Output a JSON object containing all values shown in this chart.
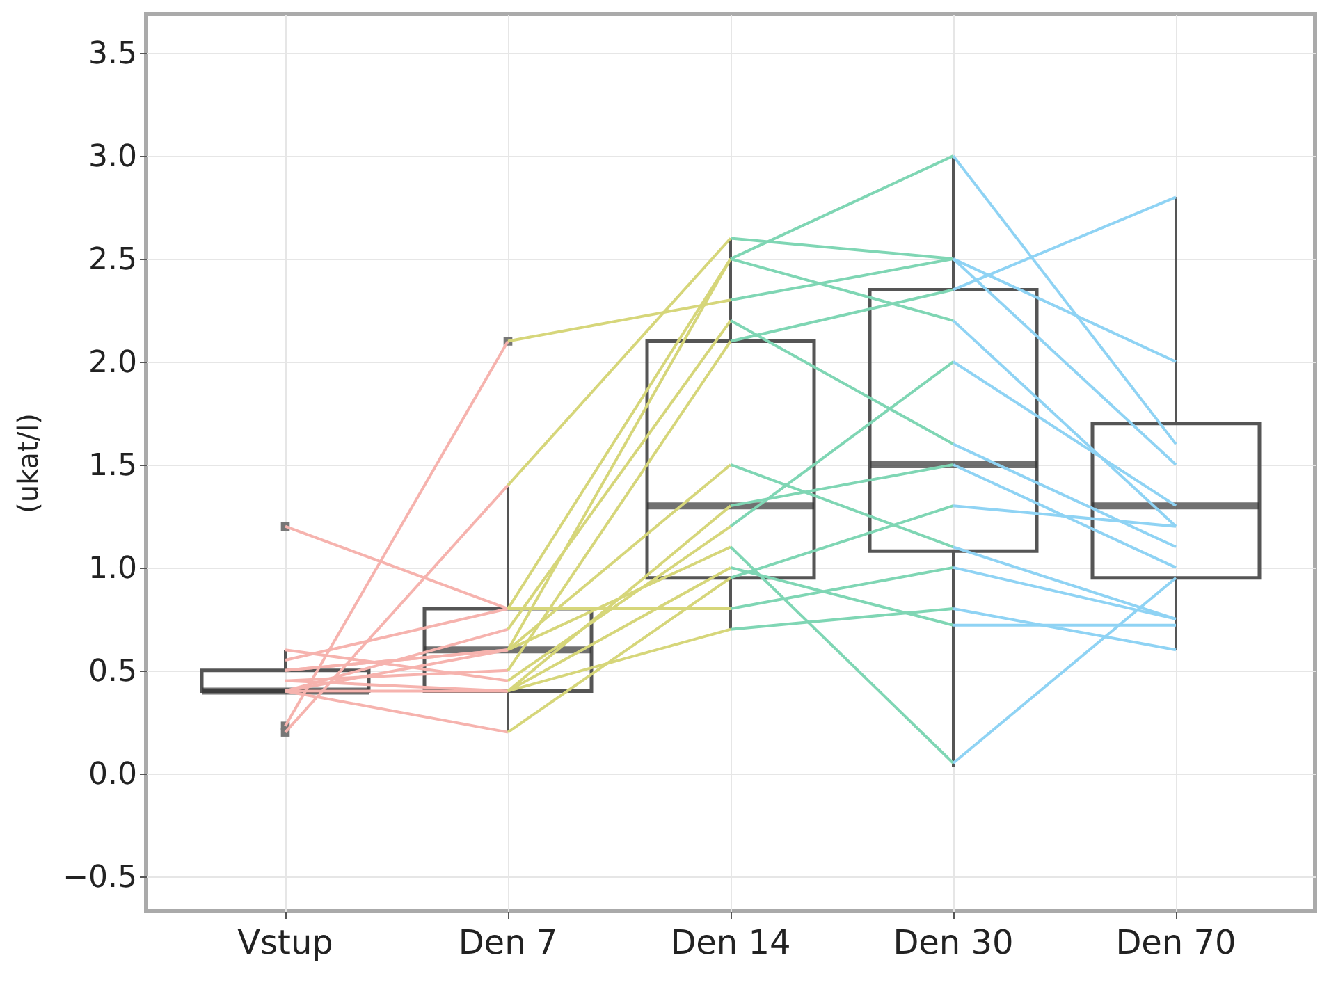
{
  "chart_data": {
    "type": "box",
    "ylabel": "(ukat/l)",
    "categories": [
      "Vstup",
      "Den 7",
      "Den 14",
      "Den 30",
      "Den 70"
    ],
    "ylim": [
      -0.67,
      3.69
    ],
    "yticks": [
      -0.5,
      {
        "value": 0,
        "label": "0.0"
      },
      0.5,
      {
        "value": 1,
        "label": "1.0"
      },
      1.5,
      {
        "value": 2,
        "label": "2.0"
      },
      2.5,
      {
        "value": 3,
        "label": "3.0"
      },
      3.5
    ],
    "grid": true,
    "boxes": [
      {
        "low": 0.4,
        "q1": 0.4,
        "median": 0.4,
        "q3": 0.5,
        "high": 0.6,
        "outliers": [
          1.2,
          0.23,
          0.2
        ]
      },
      {
        "low": 0.2,
        "q1": 0.4,
        "median": 0.6,
        "q3": 0.8,
        "high": 1.4,
        "outliers": [
          2.1
        ]
      },
      {
        "low": 0.7,
        "q1": 0.95,
        "median": 1.3,
        "q3": 2.1,
        "high": 2.6
      },
      {
        "low": 0.03,
        "q1": 1.08,
        "median": 1.5,
        "q3": 2.35,
        "high": 3.0
      },
      {
        "low": 0.6,
        "q1": 0.95,
        "median": 1.3,
        "q3": 1.7,
        "high": 2.8
      }
    ],
    "series": [
      {
        "type": "line",
        "color": "#f6b3ae",
        "x": [
          "Vstup",
          "Den 7"
        ],
        "values": [
          0.23,
          2.1
        ]
      },
      {
        "type": "line",
        "color": "#f6b3ae",
        "x": [
          "Vstup",
          "Den 7"
        ],
        "values": [
          0.2,
          1.4
        ]
      },
      {
        "type": "line",
        "color": "#f6b3ae",
        "x": [
          "Vstup",
          "Den 7"
        ],
        "values": [
          1.2,
          0.8
        ]
      },
      {
        "type": "line",
        "color": "#f6b3ae",
        "x": [
          "Vstup",
          "Den 7"
        ],
        "values": [
          0.4,
          0.6
        ]
      },
      {
        "type": "line",
        "color": "#f6b3ae",
        "x": [
          "Vstup",
          "Den 7"
        ],
        "values": [
          0.4,
          0.7
        ]
      },
      {
        "type": "line",
        "color": "#f6b3ae",
        "x": [
          "Vstup",
          "Den 7"
        ],
        "values": [
          0.45,
          0.5
        ]
      },
      {
        "type": "line",
        "color": "#f6b3ae",
        "x": [
          "Vstup",
          "Den 7"
        ],
        "values": [
          0.5,
          0.6
        ]
      },
      {
        "type": "line",
        "color": "#f6b3ae",
        "x": [
          "Vstup",
          "Den 7"
        ],
        "values": [
          0.4,
          0.4
        ]
      },
      {
        "type": "line",
        "color": "#f6b3ae",
        "x": [
          "Vstup",
          "Den 7"
        ],
        "values": [
          0.6,
          0.45
        ]
      },
      {
        "type": "line",
        "color": "#f6b3ae",
        "x": [
          "Vstup",
          "Den 7"
        ],
        "values": [
          0.5,
          0.6
        ]
      },
      {
        "type": "line",
        "color": "#f6b3ae",
        "x": [
          "Vstup",
          "Den 7"
        ],
        "values": [
          0.4,
          0.2
        ]
      },
      {
        "type": "line",
        "color": "#f6b3ae",
        "x": [
          "Vstup",
          "Den 7"
        ],
        "values": [
          0.55,
          0.8
        ]
      },
      {
        "type": "line",
        "color": "#f6b3ae",
        "x": [
          "Vstup",
          "Den 7"
        ],
        "values": [
          0.45,
          0.4
        ]
      },
      {
        "type": "line",
        "color": "#d6d67a",
        "x": [
          "Den 7",
          "Den 14"
        ],
        "values": [
          2.1,
          2.3
        ]
      },
      {
        "type": "line",
        "color": "#d6d67a",
        "x": [
          "Den 7",
          "Den 14"
        ],
        "values": [
          1.4,
          2.6
        ]
      },
      {
        "type": "line",
        "color": "#d6d67a",
        "x": [
          "Den 7",
          "Den 14"
        ],
        "values": [
          0.8,
          2.5
        ]
      },
      {
        "type": "line",
        "color": "#d6d67a",
        "x": [
          "Den 7",
          "Den 14"
        ],
        "values": [
          0.6,
          2.5
        ]
      },
      {
        "type": "line",
        "color": "#d6d67a",
        "x": [
          "Den 7",
          "Den 14"
        ],
        "values": [
          0.7,
          2.2
        ]
      },
      {
        "type": "line",
        "color": "#d6d67a",
        "x": [
          "Den 7",
          "Den 14"
        ],
        "values": [
          0.5,
          2.1
        ]
      },
      {
        "type": "line",
        "color": "#d6d67a",
        "x": [
          "Den 7",
          "Den 14"
        ],
        "values": [
          0.6,
          1.5
        ]
      },
      {
        "type": "line",
        "color": "#d6d67a",
        "x": [
          "Den 7",
          "Den 14"
        ],
        "values": [
          0.4,
          1.3
        ]
      },
      {
        "type": "line",
        "color": "#d6d67a",
        "x": [
          "Den 7",
          "Den 14"
        ],
        "values": [
          0.45,
          1.2
        ]
      },
      {
        "type": "line",
        "color": "#d6d67a",
        "x": [
          "Den 7",
          "Den 14"
        ],
        "values": [
          0.6,
          1.1
        ]
      },
      {
        "type": "line",
        "color": "#d6d67a",
        "x": [
          "Den 7",
          "Den 14"
        ],
        "values": [
          0.2,
          0.95
        ]
      },
      {
        "type": "line",
        "color": "#d6d67a",
        "x": [
          "Den 7",
          "Den 14"
        ],
        "values": [
          0.8,
          0.8
        ]
      },
      {
        "type": "line",
        "color": "#d6d67a",
        "x": [
          "Den 7",
          "Den 14"
        ],
        "values": [
          0.4,
          0.7
        ]
      },
      {
        "type": "line",
        "color": "#d6d67a",
        "x": [
          "Den 7",
          "Den 14"
        ],
        "values": [
          0.4,
          1.0
        ]
      },
      {
        "type": "line",
        "color": "#7fd6b4",
        "x": [
          "Den 14",
          "Den 30"
        ],
        "values": [
          2.3,
          2.5
        ]
      },
      {
        "type": "line",
        "color": "#7fd6b4",
        "x": [
          "Den 14",
          "Den 30"
        ],
        "values": [
          2.6,
          2.5
        ]
      },
      {
        "type": "line",
        "color": "#7fd6b4",
        "x": [
          "Den 14",
          "Den 30"
        ],
        "values": [
          2.5,
          3.0
        ]
      },
      {
        "type": "line",
        "color": "#7fd6b4",
        "x": [
          "Den 14",
          "Den 30"
        ],
        "values": [
          2.5,
          2.2
        ]
      },
      {
        "type": "line",
        "color": "#7fd6b4",
        "x": [
          "Den 14",
          "Den 30"
        ],
        "values": [
          2.2,
          1.6
        ]
      },
      {
        "type": "line",
        "color": "#7fd6b4",
        "x": [
          "Den 14",
          "Den 30"
        ],
        "values": [
          2.1,
          2.35
        ]
      },
      {
        "type": "line",
        "color": "#7fd6b4",
        "x": [
          "Den 14",
          "Den 30"
        ],
        "values": [
          1.5,
          1.1
        ]
      },
      {
        "type": "line",
        "color": "#7fd6b4",
        "x": [
          "Den 14",
          "Den 30"
        ],
        "values": [
          1.3,
          1.5
        ]
      },
      {
        "type": "line",
        "color": "#7fd6b4",
        "x": [
          "Den 14",
          "Den 30"
        ],
        "values": [
          1.2,
          2.0
        ]
      },
      {
        "type": "line",
        "color": "#7fd6b4",
        "x": [
          "Den 14",
          "Den 30"
        ],
        "values": [
          1.1,
          0.05
        ]
      },
      {
        "type": "line",
        "color": "#7fd6b4",
        "x": [
          "Den 14",
          "Den 30"
        ],
        "values": [
          0.95,
          1.3
        ]
      },
      {
        "type": "line",
        "color": "#7fd6b4",
        "x": [
          "Den 14",
          "Den 30"
        ],
        "values": [
          0.8,
          1.0
        ]
      },
      {
        "type": "line",
        "color": "#7fd6b4",
        "x": [
          "Den 14",
          "Den 30"
        ],
        "values": [
          0.7,
          0.8
        ]
      },
      {
        "type": "line",
        "color": "#7fd6b4",
        "x": [
          "Den 14",
          "Den 30"
        ],
        "values": [
          1.0,
          0.72
        ]
      },
      {
        "type": "line",
        "color": "#8fd3f4",
        "x": [
          "Den 30",
          "Den 70"
        ],
        "values": [
          2.5,
          1.5
        ]
      },
      {
        "type": "line",
        "color": "#8fd3f4",
        "x": [
          "Den 30",
          "Den 70"
        ],
        "values": [
          2.5,
          2.0
        ]
      },
      {
        "type": "line",
        "color": "#8fd3f4",
        "x": [
          "Den 30",
          "Den 70"
        ],
        "values": [
          3.0,
          1.6
        ]
      },
      {
        "type": "line",
        "color": "#8fd3f4",
        "x": [
          "Den 30",
          "Den 70"
        ],
        "values": [
          2.2,
          1.2
        ]
      },
      {
        "type": "line",
        "color": "#8fd3f4",
        "x": [
          "Den 30",
          "Den 70"
        ],
        "values": [
          1.6,
          1.1
        ]
      },
      {
        "type": "line",
        "color": "#8fd3f4",
        "x": [
          "Den 30",
          "Den 70"
        ],
        "values": [
          2.35,
          2.8
        ]
      },
      {
        "type": "line",
        "color": "#8fd3f4",
        "x": [
          "Den 30",
          "Den 70"
        ],
        "values": [
          1.1,
          0.75
        ]
      },
      {
        "type": "line",
        "color": "#8fd3f4",
        "x": [
          "Den 30",
          "Den 70"
        ],
        "values": [
          1.5,
          1.0
        ]
      },
      {
        "type": "line",
        "color": "#8fd3f4",
        "x": [
          "Den 30",
          "Den 70"
        ],
        "values": [
          2.0,
          1.3
        ]
      },
      {
        "type": "line",
        "color": "#8fd3f4",
        "x": [
          "Den 30",
          "Den 70"
        ],
        "values": [
          0.05,
          0.95
        ]
      },
      {
        "type": "line",
        "color": "#8fd3f4",
        "x": [
          "Den 30",
          "Den 70"
        ],
        "values": [
          1.3,
          1.2
        ]
      },
      {
        "type": "line",
        "color": "#8fd3f4",
        "x": [
          "Den 30",
          "Den 70"
        ],
        "values": [
          1.0,
          0.75
        ]
      },
      {
        "type": "line",
        "color": "#8fd3f4",
        "x": [
          "Den 30",
          "Den 70"
        ],
        "values": [
          0.8,
          0.6
        ]
      },
      {
        "type": "line",
        "color": "#8fd3f4",
        "x": [
          "Den 30",
          "Den 70"
        ],
        "values": [
          0.72,
          0.72
        ]
      }
    ]
  }
}
